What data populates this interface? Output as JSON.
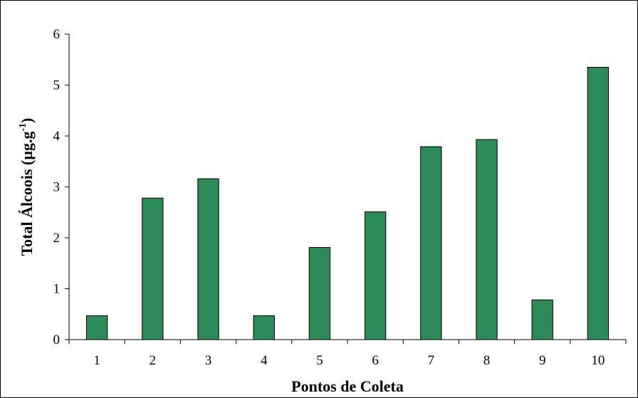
{
  "chart_data": {
    "type": "bar",
    "title": "",
    "xlabel": "Pontos de Coleta",
    "ylabel": "Total Álcoois (µg.g",
    "ylabel_superscript": "-1",
    "ylabel_close": ")",
    "categories": [
      "1",
      "2",
      "3",
      "4",
      "5",
      "6",
      "7",
      "8",
      "9",
      "10"
    ],
    "values": [
      0.47,
      2.78,
      3.16,
      0.47,
      1.81,
      2.51,
      3.79,
      3.93,
      0.78,
      5.35
    ],
    "ylim": [
      0,
      6
    ],
    "yticks": [
      0,
      1,
      2,
      3,
      4,
      5,
      6
    ],
    "grid": false,
    "legend": "none",
    "colors": {
      "bar_fill": "#2e8b57",
      "bar_stroke": "#000000",
      "axis": "#000000",
      "background": "#ffffff"
    }
  }
}
